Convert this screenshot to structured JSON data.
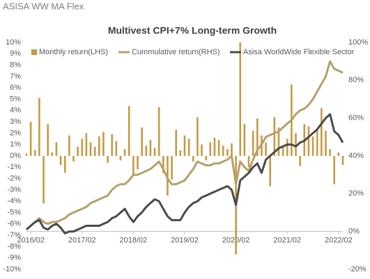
{
  "header": "ASISA WW MA Flex",
  "chart_data": {
    "type": "combo",
    "title": "Multivest CPI+7% Long-term Growth",
    "categories": [
      null,
      "2016/02",
      null,
      null,
      null,
      null,
      null,
      null,
      null,
      null,
      null,
      null,
      null,
      "2017/02",
      null,
      null,
      null,
      null,
      null,
      null,
      null,
      null,
      null,
      null,
      null,
      "2018/02",
      null,
      null,
      null,
      null,
      null,
      null,
      null,
      null,
      null,
      null,
      null,
      "2019/02",
      null,
      null,
      null,
      null,
      null,
      null,
      null,
      null,
      null,
      null,
      null,
      "2020/02",
      null,
      null,
      null,
      null,
      null,
      null,
      null,
      null,
      null,
      null,
      null,
      "2021/02",
      null,
      null,
      null,
      null,
      null,
      null,
      null,
      null,
      null,
      null,
      null,
      "2022/02",
      null
    ],
    "series": [
      {
        "name": "Monthly return(LHS)",
        "type": "bar",
        "color": "#c49a45",
        "axis": "y",
        "values": [
          0.2,
          3.0,
          0.5,
          5.1,
          -4.2,
          2.8,
          0.3,
          1.2,
          -0.8,
          -1.5,
          1.8,
          -0.5,
          0.8,
          1.5,
          2.0,
          1.2,
          0.8,
          1.7,
          2.1,
          -0.6,
          1.9,
          1.3,
          -0.4,
          0.6,
          4.4,
          -1.8,
          -1.2,
          2.5,
          0.9,
          1.4,
          0.7,
          4.3,
          -1.5,
          -3.5,
          -2.1,
          2.3,
          0.5,
          1.8,
          1.5,
          -0.5,
          3.4,
          1.0,
          -0.4,
          1.2,
          1.6,
          1.4,
          0.9,
          0.6,
          1.1,
          -8.7,
          10,
          2.8,
          -1.0,
          2.2,
          3.3,
          1.8,
          1.2,
          -2.7,
          3.4,
          2.5,
          0.9,
          1.5,
          6.3,
          2.0,
          -0.9,
          2.8,
          2.6,
          1.7,
          2.4,
          4.2,
          2.2,
          0.6,
          -2.5,
          0.3,
          -0.8
        ]
      },
      {
        "name": "Cummulative return(RHS)",
        "type": "line",
        "color": "#b5a06a",
        "axis": "y2",
        "values": [
          1,
          3,
          5,
          7,
          5,
          4,
          5,
          5,
          6,
          7,
          9,
          10,
          11,
          12,
          13,
          15,
          16,
          17,
          18,
          19,
          22,
          24,
          25,
          25,
          27,
          30,
          30,
          31,
          32,
          33,
          35,
          37,
          33,
          28,
          25,
          25,
          26,
          27,
          30,
          33,
          37,
          36,
          35,
          35,
          36,
          36,
          37,
          38,
          40,
          25,
          37,
          34,
          32,
          38,
          43,
          46,
          50,
          51,
          52,
          53,
          55,
          57,
          59,
          62,
          64,
          65,
          67,
          70,
          74,
          78,
          82,
          90,
          86,
          85,
          84
        ]
      },
      {
        "name": "Asisa WorldWide Flexible Sector",
        "type": "line",
        "color": "#4a4a4a",
        "axis": "y2",
        "values": [
          1,
          3,
          5,
          6,
          2,
          1,
          3,
          4,
          2,
          -1,
          0,
          0,
          1,
          2,
          3,
          3,
          3,
          3,
          4,
          5,
          7,
          8,
          10,
          12,
          8,
          5,
          8,
          10,
          13,
          15,
          17,
          16,
          12,
          8,
          6,
          6,
          6,
          10,
          13,
          15,
          16,
          18,
          19,
          20,
          21,
          22,
          23,
          24,
          22,
          14,
          27,
          29,
          31,
          34,
          36,
          31,
          38,
          40,
          42,
          44,
          45,
          46,
          46,
          45,
          47,
          48,
          50,
          52,
          54,
          57,
          60,
          62,
          53,
          51,
          47
        ]
      }
    ],
    "ylim": [
      -10,
      10
    ],
    "yticks": [
      {
        "value": -10,
        "label": "-10%"
      },
      {
        "value": -9,
        "label": "-9%"
      },
      {
        "value": -8,
        "label": "-8%"
      },
      {
        "value": -7,
        "label": "-7%"
      },
      {
        "value": -6,
        "label": "-6%"
      },
      {
        "value": -5,
        "label": "-5%"
      },
      {
        "value": -4,
        "label": "-4%"
      },
      {
        "value": -3,
        "label": "-3%"
      },
      {
        "value": -2,
        "label": "-2%"
      },
      {
        "value": -1,
        "label": "-1%"
      },
      {
        "value": 0,
        "label": "0%"
      },
      {
        "value": 1,
        "label": "1%"
      },
      {
        "value": 2,
        "label": "2%"
      },
      {
        "value": 3,
        "label": "3%"
      },
      {
        "value": 4,
        "label": "4%"
      },
      {
        "value": 5,
        "label": "5%"
      },
      {
        "value": 6,
        "label": "6%"
      },
      {
        "value": 7,
        "label": "7%"
      },
      {
        "value": 8,
        "label": "8%"
      },
      {
        "value": 9,
        "label": "9%"
      },
      {
        "value": 10,
        "label": "10%"
      }
    ],
    "y2lim": [
      -20,
      100
    ],
    "y2ticks": [
      {
        "value": -20,
        "label": "-20%"
      },
      {
        "value": 0,
        "label": "0%"
      },
      {
        "value": 20,
        "label": "20%"
      },
      {
        "value": 40,
        "label": "40%"
      },
      {
        "value": 60,
        "label": "60%"
      },
      {
        "value": 80,
        "label": "80%"
      },
      {
        "value": 100,
        "label": "100%"
      }
    ],
    "legend": "top"
  }
}
